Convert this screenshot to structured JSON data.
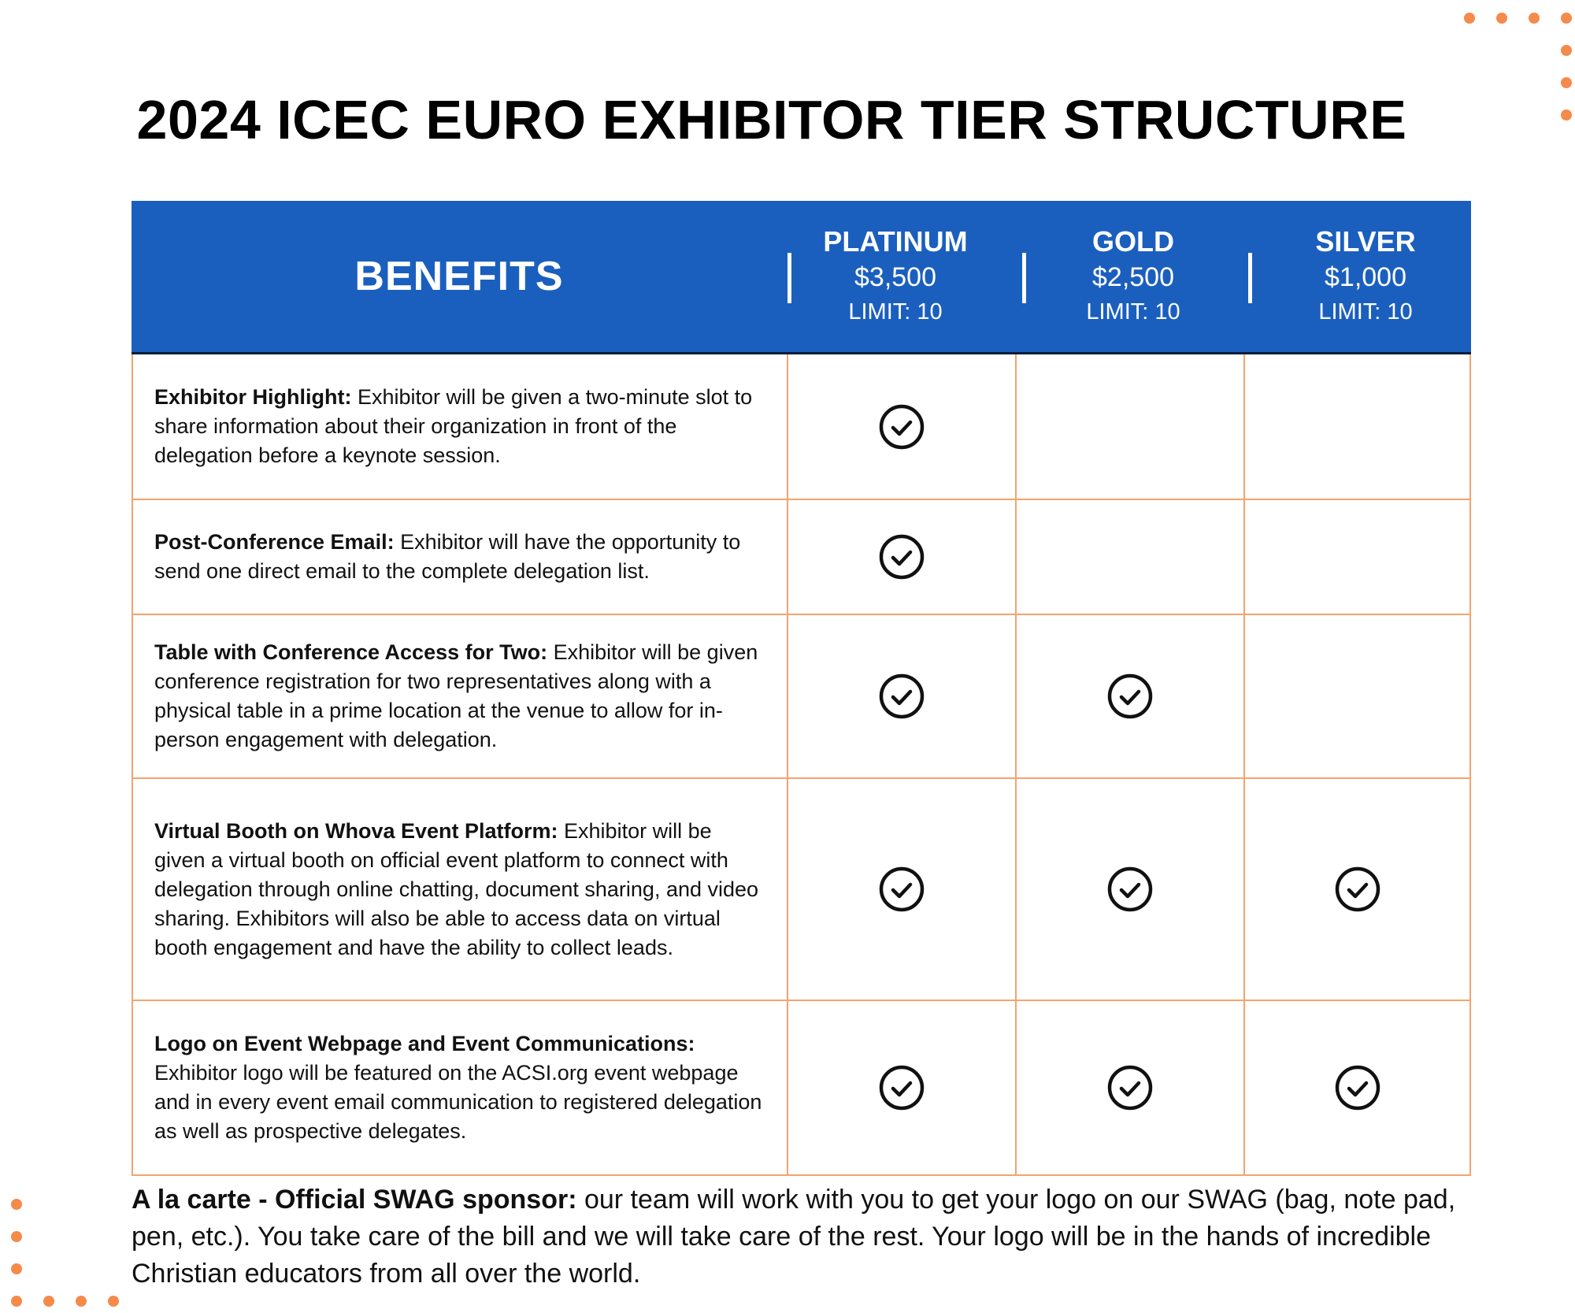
{
  "title": "2024 ICEC EURO EXHIBITOR TIER STRUCTURE",
  "colors": {
    "header_bg": "#1b5fbe",
    "grid_line": "#f5a36e",
    "accent_dots": "#f58a4b"
  },
  "header": {
    "benefits_label": "BENEFITS",
    "tiers": [
      {
        "name": "PLATINUM",
        "price": "$3,500",
        "limit": "LIMIT: 10"
      },
      {
        "name": "GOLD",
        "price": "$2,500",
        "limit": "LIMIT: 10"
      },
      {
        "name": "SILVER",
        "price": "$1,000",
        "limit": "LIMIT: 10"
      }
    ]
  },
  "rows": [
    {
      "title": "Exhibitor Highlight:",
      "text": " Exhibitor will be given a two-minute slot to share information about their organization in front of the delegation before a keynote session.",
      "platinum": true,
      "gold": false,
      "silver": false
    },
    {
      "title": "Post-Conference Email:",
      "text": " Exhibitor will have the opportunity to send one direct email to the complete delegation list.",
      "platinum": true,
      "gold": false,
      "silver": false
    },
    {
      "title": "Table with Conference Access for Two:",
      "text": " Exhibitor will be given conference registration for two representatives along with a physical table in a prime location at the venue to allow for in-person engagement with delegation.",
      "platinum": true,
      "gold": true,
      "silver": false
    },
    {
      "title": "Virtual Booth on Whova Event Platform:",
      "text": " Exhibitor will be given a virtual booth on official event platform to connect with delegation through online chatting, document sharing, and video sharing. Exhibitors will also be able to access data on virtual booth engagement and have the ability to collect leads.",
      "platinum": true,
      "gold": true,
      "silver": true
    },
    {
      "title": "Logo on Event Webpage and Event Communications:",
      "text": "Exhibitor logo will be featured on the ACSI.org event webpage and in every event email communication to registered delegation as well as prospective delegates.",
      "platinum": true,
      "gold": true,
      "silver": true
    }
  ],
  "footer": {
    "title": "A la carte - Official SWAG sponsor:",
    "text": "  our team will work with you to get your logo on our SWAG (bag, note pad, pen, etc.). You take care of the bill and we will take care of the rest. Your logo will be in the hands of incredible Christian educators from all over the world."
  }
}
